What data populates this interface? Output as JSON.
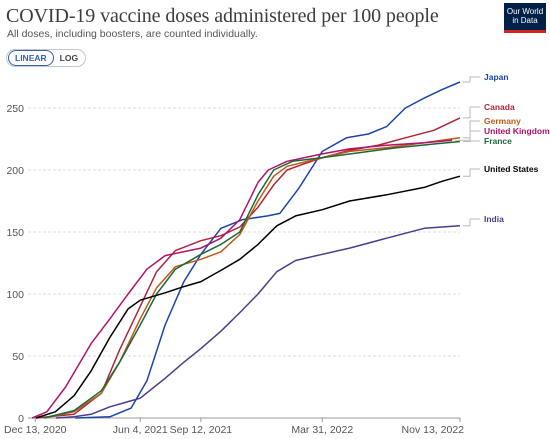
{
  "header": {
    "title": "COVID-19 vaccine doses administered per 100 people",
    "subtitle": "All doses, including boosters, are counted individually.",
    "logo_line1": "Our World",
    "logo_line2": "in Data"
  },
  "controls": {
    "linear_label": "LINEAR",
    "log_label": "LOG"
  },
  "chart_data": {
    "type": "line",
    "title": "COVID-19 vaccine doses administered per 100 people",
    "subtitle": "All doses, including boosters, are counted individually.",
    "x_ticks": [
      "Dec 13, 2020",
      "Jun 4, 2021",
      "Sep 12, 2021",
      "Mar 31, 2022",
      "Nov 13, 2022"
    ],
    "x_range": [
      "2020-12-01",
      "2022-11-13"
    ],
    "y_ticks": [
      0,
      50,
      100,
      150,
      200,
      250
    ],
    "ylim": [
      0,
      275
    ],
    "grid": true,
    "legend": "right-end labels",
    "series": [
      {
        "name": "Japan",
        "color": "#1a45a8",
        "points": [
          [
            "2021-02-17",
            0
          ],
          [
            "2021-04-15",
            1
          ],
          [
            "2021-05-20",
            8
          ],
          [
            "2021-06-15",
            30
          ],
          [
            "2021-07-15",
            75
          ],
          [
            "2021-08-15",
            110
          ],
          [
            "2021-09-12",
            132
          ],
          [
            "2021-10-15",
            153
          ],
          [
            "2021-11-20",
            160
          ],
          [
            "2021-12-31",
            163
          ],
          [
            "2022-01-20",
            165
          ],
          [
            "2022-02-20",
            185
          ],
          [
            "2022-03-31",
            215
          ],
          [
            "2022-05-10",
            226
          ],
          [
            "2022-06-15",
            229
          ],
          [
            "2022-07-15",
            235
          ],
          [
            "2022-08-15",
            250
          ],
          [
            "2022-09-15",
            258
          ],
          [
            "2022-10-15",
            265
          ],
          [
            "2022-11-13",
            271
          ]
        ]
      },
      {
        "name": "Canada",
        "color": "#b1253a",
        "points": [
          [
            "2020-12-14",
            0
          ],
          [
            "2021-02-15",
            3
          ],
          [
            "2021-04-01",
            20
          ],
          [
            "2021-05-01",
            55
          ],
          [
            "2021-06-04",
            90
          ],
          [
            "2021-07-01",
            118
          ],
          [
            "2021-08-01",
            135
          ],
          [
            "2021-09-12",
            143
          ],
          [
            "2021-10-15",
            147
          ],
          [
            "2021-11-15",
            154
          ],
          [
            "2021-12-15",
            170
          ],
          [
            "2022-01-10",
            188
          ],
          [
            "2022-02-01",
            200
          ],
          [
            "2022-03-01",
            205
          ],
          [
            "2022-04-01",
            210
          ],
          [
            "2022-05-15",
            216
          ],
          [
            "2022-07-01",
            220
          ],
          [
            "2022-08-15",
            226
          ],
          [
            "2022-10-01",
            232
          ],
          [
            "2022-11-13",
            242
          ]
        ]
      },
      {
        "name": "Germany",
        "color": "#c05917",
        "points": [
          [
            "2020-12-27",
            0
          ],
          [
            "2021-02-15",
            5
          ],
          [
            "2021-04-01",
            20
          ],
          [
            "2021-05-01",
            45
          ],
          [
            "2021-06-04",
            80
          ],
          [
            "2021-07-01",
            105
          ],
          [
            "2021-08-01",
            122
          ],
          [
            "2021-09-12",
            128
          ],
          [
            "2021-10-15",
            134
          ],
          [
            "2021-11-15",
            148
          ],
          [
            "2021-12-15",
            175
          ],
          [
            "2022-01-10",
            195
          ],
          [
            "2022-02-01",
            203
          ],
          [
            "2022-03-31",
            210
          ],
          [
            "2022-05-15",
            215
          ],
          [
            "2022-07-15",
            218
          ],
          [
            "2022-09-15",
            222
          ],
          [
            "2022-11-13",
            226
          ]
        ]
      },
      {
        "name": "United Kingdom",
        "color": "#b3116a",
        "points": [
          [
            "2020-12-08",
            0
          ],
          [
            "2021-01-01",
            5
          ],
          [
            "2021-02-01",
            25
          ],
          [
            "2021-03-15",
            60
          ],
          [
            "2021-04-15",
            80
          ],
          [
            "2021-05-15",
            100
          ],
          [
            "2021-06-15",
            120
          ],
          [
            "2021-07-15",
            131
          ],
          [
            "2021-09-12",
            137
          ],
          [
            "2021-10-15",
            145
          ],
          [
            "2021-11-15",
            160
          ],
          [
            "2021-12-15",
            190
          ],
          [
            "2022-01-01",
            200
          ],
          [
            "2022-02-01",
            207
          ],
          [
            "2022-03-31",
            213
          ],
          [
            "2022-05-15",
            217
          ],
          [
            "2022-07-15",
            220
          ],
          [
            "2022-09-15",
            222
          ],
          [
            "2022-10-31",
            224
          ]
        ]
      },
      {
        "name": "France",
        "color": "#1a6937",
        "points": [
          [
            "2020-12-27",
            0
          ],
          [
            "2021-02-15",
            6
          ],
          [
            "2021-04-01",
            22
          ],
          [
            "2021-05-01",
            45
          ],
          [
            "2021-06-04",
            75
          ],
          [
            "2021-07-01",
            100
          ],
          [
            "2021-08-01",
            120
          ],
          [
            "2021-09-12",
            132
          ],
          [
            "2021-10-15",
            140
          ],
          [
            "2021-11-15",
            150
          ],
          [
            "2021-12-15",
            180
          ],
          [
            "2022-01-10",
            200
          ],
          [
            "2022-02-10",
            207
          ],
          [
            "2022-03-31",
            210
          ],
          [
            "2022-06-01",
            214
          ],
          [
            "2022-08-01",
            218
          ],
          [
            "2022-10-01",
            221
          ],
          [
            "2022-11-13",
            223
          ]
        ]
      },
      {
        "name": "United States",
        "color": "#000000",
        "points": [
          [
            "2020-12-14",
            0
          ],
          [
            "2021-01-15",
            5
          ],
          [
            "2021-02-15",
            18
          ],
          [
            "2021-03-15",
            38
          ],
          [
            "2021-04-15",
            65
          ],
          [
            "2021-05-15",
            88
          ],
          [
            "2021-06-04",
            95
          ],
          [
            "2021-07-15",
            101
          ],
          [
            "2021-08-15",
            106
          ],
          [
            "2021-09-12",
            110
          ],
          [
            "2021-10-15",
            119
          ],
          [
            "2021-11-15",
            128
          ],
          [
            "2021-12-15",
            140
          ],
          [
            "2022-01-15",
            155
          ],
          [
            "2022-02-15",
            163
          ],
          [
            "2022-03-31",
            168
          ],
          [
            "2022-05-15",
            175
          ],
          [
            "2022-07-15",
            180
          ],
          [
            "2022-09-15",
            186
          ],
          [
            "2022-10-15",
            191
          ],
          [
            "2022-11-13",
            195
          ]
        ]
      },
      {
        "name": "India",
        "color": "#4c3b8e",
        "points": [
          [
            "2021-01-16",
            0
          ],
          [
            "2021-02-15",
            1
          ],
          [
            "2021-03-15",
            3
          ],
          [
            "2021-04-15",
            9
          ],
          [
            "2021-06-04",
            16
          ],
          [
            "2021-07-15",
            32
          ],
          [
            "2021-08-15",
            45
          ],
          [
            "2021-09-12",
            56
          ],
          [
            "2021-10-15",
            70
          ],
          [
            "2021-11-15",
            85
          ],
          [
            "2021-12-15",
            100
          ],
          [
            "2022-01-15",
            118
          ],
          [
            "2022-02-15",
            127
          ],
          [
            "2022-03-31",
            132
          ],
          [
            "2022-05-15",
            137
          ],
          [
            "2022-07-15",
            145
          ],
          [
            "2022-09-15",
            153
          ],
          [
            "2022-11-13",
            155
          ]
        ]
      }
    ]
  }
}
